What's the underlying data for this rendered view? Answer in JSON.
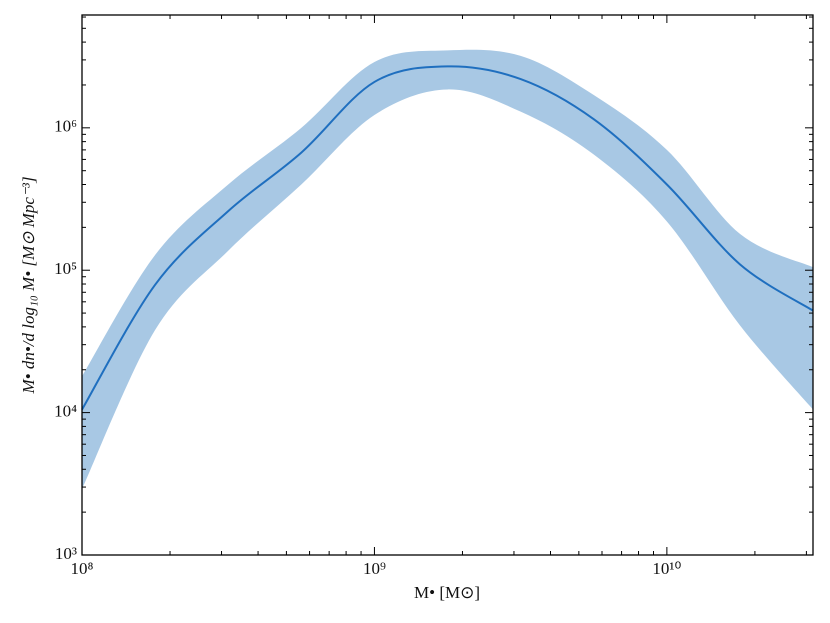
{
  "chart_data": {
    "type": "line",
    "xlabel": "M• [M⊙]",
    "ylabel": "M• dn•/d log₁₀ M• [M⊙ Mpc⁻³]",
    "log_x": true,
    "log_y": true,
    "xlim": [
      100000000,
      31600000000
    ],
    "ylim": [
      1000,
      6200000
    ],
    "xticks": [
      {
        "value": 100000000,
        "label": "10⁸"
      },
      {
        "value": 1000000000,
        "label": "10⁹"
      },
      {
        "value": 10000000000,
        "label": "10¹⁰"
      }
    ],
    "yticks": [
      {
        "value": 1000,
        "label": "10³"
      },
      {
        "value": 10000,
        "label": "10⁴"
      },
      {
        "value": 100000,
        "label": "10⁵"
      },
      {
        "value": 1000000,
        "label": "10⁶"
      }
    ],
    "x": [
      100000000,
      177800000,
      316200000,
      562300000,
      1000000000,
      1778000000,
      3162000000,
      5623000000,
      10000000000,
      17780000000,
      31620000000
    ],
    "series": [
      {
        "color": "#1f6fbf",
        "values": [
          10500,
          79000,
          260000,
          670000,
          2100000,
          2700000,
          2200000,
          1150000,
          400000,
          110000,
          52000
        ]
      }
    ],
    "band": {
      "color": "#a8c8e4",
      "lower": [
        2900,
        38000,
        137000,
        400000,
        1230000,
        1860000,
        1300000,
        650000,
        220000,
        41000,
        10500
      ],
      "upper": [
        18000,
        128000,
        400000,
        1000000,
        2900000,
        3500000,
        3200000,
        1700000,
        700000,
        180000,
        105000
      ]
    }
  }
}
